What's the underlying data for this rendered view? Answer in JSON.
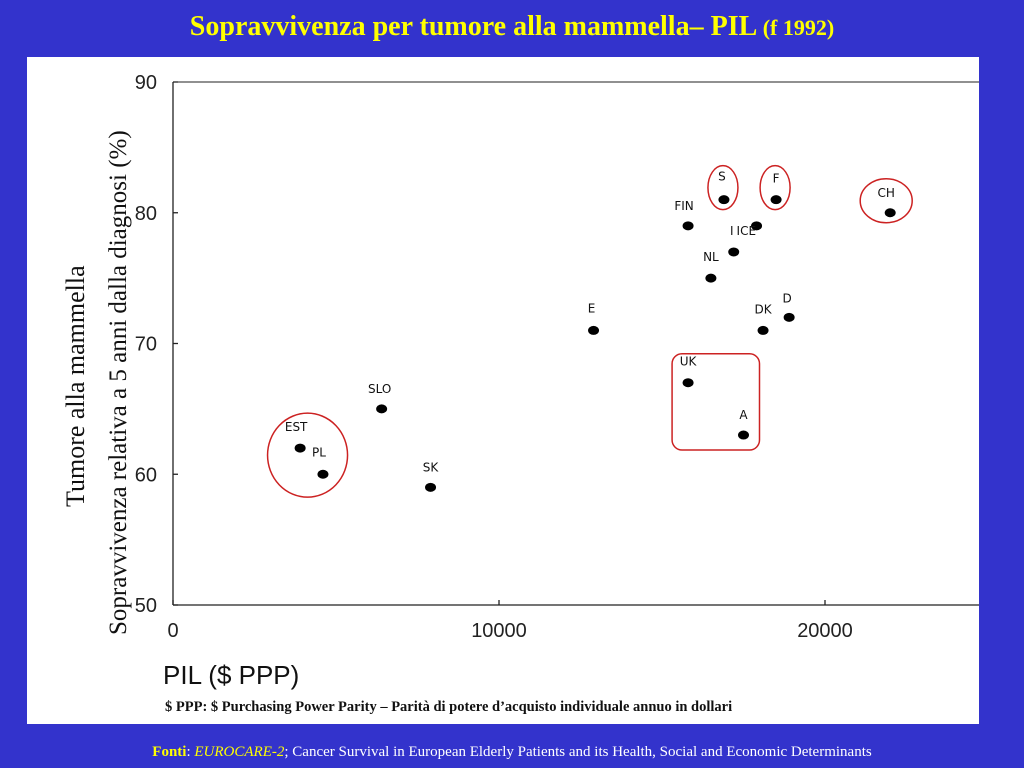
{
  "title": "Sopravvivenza per tumore alla mammella– PIL",
  "title_suffix": "(f 1992)",
  "chart_data": {
    "type": "scatter",
    "xlabel": "PIL ($ PPP)",
    "ylabel_line1": "Tumore alla mammella",
    "ylabel_line2": "Sopravvivenza relativa a 5 anni dalla diagnosi (%)",
    "note": "$ PPP: $ Purchasing Power Parity – Parità di potere d’acquisto individuale annuo in dollari",
    "xlim": [
      0,
      25500
    ],
    "ylim": [
      50,
      90
    ],
    "xticks": [
      0,
      10000,
      20000
    ],
    "yticks": [
      50,
      60,
      70,
      80,
      90
    ],
    "grid": false,
    "points": [
      {
        "label": "EST",
        "x": 3900,
        "y": 62
      },
      {
        "label": "PL",
        "x": 4600,
        "y": 60
      },
      {
        "label": "SLO",
        "x": 6400,
        "y": 65
      },
      {
        "label": "SK",
        "x": 7900,
        "y": 59
      },
      {
        "label": "E",
        "x": 12900,
        "y": 71
      },
      {
        "label": "UK",
        "x": 15800,
        "y": 67
      },
      {
        "label": "A",
        "x": 17500,
        "y": 63
      },
      {
        "label": "FIN",
        "x": 15800,
        "y": 79
      },
      {
        "label": "S",
        "x": 16900,
        "y": 81
      },
      {
        "label": "ICE",
        "x": 17900,
        "y": 79
      },
      {
        "label": "F",
        "x": 18500,
        "y": 81
      },
      {
        "label": "I",
        "x": 17200,
        "y": 77
      },
      {
        "label": "NL",
        "x": 16500,
        "y": 75
      },
      {
        "label": "DK",
        "x": 18100,
        "y": 71
      },
      {
        "label": "D",
        "x": 18900,
        "y": 72
      },
      {
        "label": "CH",
        "x": 22000,
        "y": 80
      }
    ],
    "highlights": [
      {
        "shape": "ellipse",
        "members": [
          "EST",
          "PL"
        ],
        "color": "#cc2222"
      },
      {
        "shape": "ellipse",
        "members": [
          "S"
        ],
        "color": "#cc2222"
      },
      {
        "shape": "ellipse",
        "members": [
          "F"
        ],
        "color": "#cc2222"
      },
      {
        "shape": "ellipse",
        "members": [
          "CH"
        ],
        "color": "#cc2222"
      },
      {
        "shape": "rounded-rect",
        "members": [
          "UK",
          "A"
        ],
        "color": "#cc2222"
      }
    ]
  },
  "footer": {
    "fonti_label": "Fonti",
    "source_name": "EUROCARE-2",
    "source_desc": "; Cancer Survival in European Elderly Patients and its Health, Social and Economic Determinants"
  },
  "colors": {
    "background": "#3333cc",
    "title": "#ffff00",
    "highlight": "#cc2222"
  }
}
